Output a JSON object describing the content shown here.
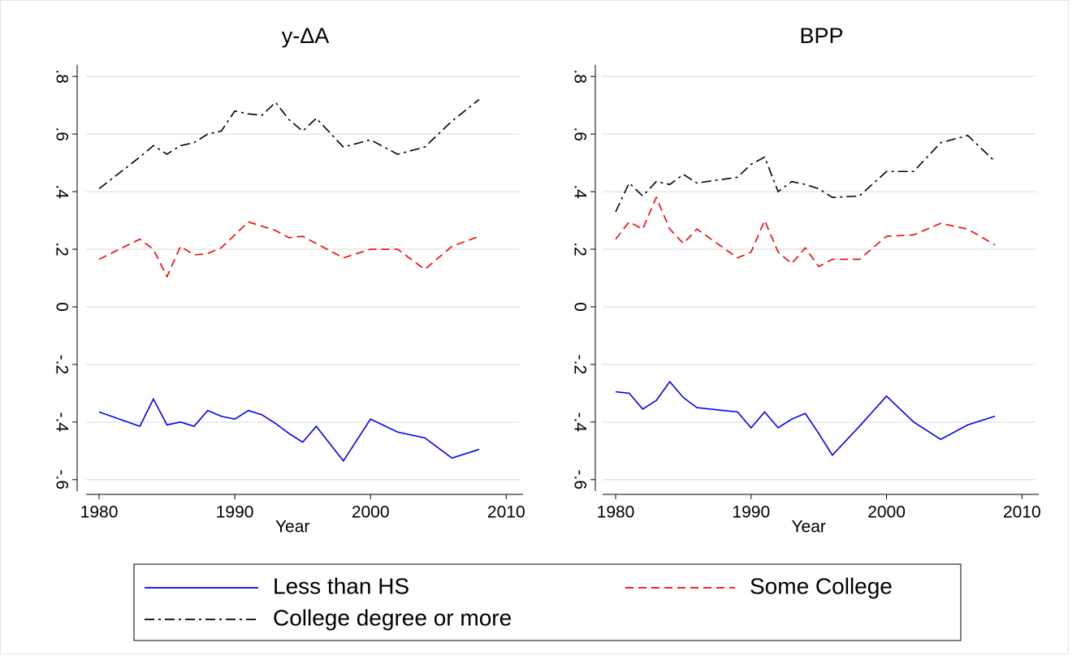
{
  "chart_data": [
    {
      "type": "line",
      "title": "y-ΔA",
      "x_label": "Year",
      "x": [
        1980,
        1983,
        1984,
        1985,
        1986,
        1987,
        1988,
        1989,
        1990,
        1991,
        1992,
        1993,
        1994,
        1995,
        1996,
        1998,
        2000,
        2002,
        2004,
        2006,
        2008
      ],
      "series": [
        {
          "name": "Less than HS",
          "color": "#0000ff",
          "dash": "none",
          "values": [
            -0.365,
            -0.415,
            -0.32,
            -0.41,
            -0.4,
            -0.415,
            -0.36,
            -0.38,
            -0.39,
            -0.36,
            -0.375,
            -0.405,
            -0.44,
            -0.47,
            -0.415,
            -0.535,
            -0.39,
            -0.435,
            -0.455,
            -0.525,
            -0.495
          ]
        },
        {
          "name": "Some College",
          "color": "#ff0000",
          "dash": "10,6",
          "values": [
            0.165,
            0.235,
            0.2,
            0.105,
            0.21,
            0.18,
            0.185,
            0.205,
            0.25,
            0.295,
            0.28,
            0.265,
            0.24,
            0.245,
            0.22,
            0.17,
            0.2,
            0.2,
            0.13,
            0.21,
            0.245
          ]
        },
        {
          "name": "College degree or more",
          "color": "#000000",
          "dash": "12,5,3,5",
          "values": [
            0.41,
            0.52,
            0.56,
            0.53,
            0.56,
            0.57,
            0.6,
            0.61,
            0.68,
            0.67,
            0.665,
            0.71,
            0.65,
            0.61,
            0.655,
            0.555,
            0.58,
            0.53,
            0.555,
            0.645,
            0.72
          ]
        }
      ],
      "xlim": [
        1979.4,
        2011
      ],
      "xticks": [
        1980,
        1990,
        2000,
        2010
      ],
      "ylim": [
        -0.64,
        0.84
      ],
      "yticks": [
        {
          "value": -0.6,
          "label": "-.6"
        },
        {
          "value": -0.4,
          "label": "-.4"
        },
        {
          "value": -0.2,
          "label": "-.2"
        },
        0,
        {
          "value": 0.2,
          "label": ".2"
        },
        {
          "value": 0.4,
          "label": ".4"
        },
        {
          "value": 0.6,
          "label": ".6"
        },
        {
          "value": 0.8,
          "label": ".8"
        }
      ],
      "grid": true
    },
    {
      "type": "line",
      "title": "BPP",
      "x_label": "Year",
      "x": [
        1980,
        1981,
        1982,
        1983,
        1984,
        1985,
        1986,
        1989,
        1990,
        1991,
        1992,
        1993,
        1994,
        1995,
        1996,
        1998,
        2000,
        2002,
        2004,
        2006,
        2008
      ],
      "series": [
        {
          "color": "#0000ff",
          "dash": "none",
          "values": [
            -0.295,
            -0.3,
            -0.355,
            -0.325,
            -0.26,
            -0.315,
            -0.35,
            -0.365,
            -0.42,
            -0.365,
            -0.42,
            -0.39,
            -0.37,
            -0.44,
            -0.515,
            -0.415,
            -0.31,
            -0.4,
            -0.46,
            -0.41,
            -0.38
          ]
        },
        {
          "color": "#ff0000",
          "dash": "10,6",
          "values": [
            0.235,
            0.295,
            0.27,
            0.38,
            0.27,
            0.22,
            0.27,
            0.17,
            0.19,
            0.3,
            0.19,
            0.15,
            0.205,
            0.14,
            0.165,
            0.165,
            0.245,
            0.25,
            0.29,
            0.27,
            0.215
          ]
        },
        {
          "color": "#000000",
          "dash": "12,5,3,5",
          "values": [
            0.33,
            0.43,
            0.385,
            0.435,
            0.425,
            0.46,
            0.43,
            0.45,
            0.495,
            0.52,
            0.4,
            0.435,
            0.425,
            0.41,
            0.38,
            0.385,
            0.47,
            0.47,
            0.57,
            0.595,
            0.505
          ]
        }
      ],
      "xlim": [
        1979.4,
        2011
      ],
      "xticks": [
        1980,
        1990,
        2000,
        2010
      ],
      "ylim": [
        -0.64,
        0.84
      ],
      "yticks": [
        {
          "value": -0.6,
          "label": "-.6"
        },
        {
          "value": -0.4,
          "label": "-.4"
        },
        {
          "value": -0.2,
          "label": "-.2"
        },
        0,
        {
          "value": 0.2,
          "label": ".2"
        },
        {
          "value": 0.4,
          "label": ".4"
        },
        {
          "value": 0.6,
          "label": ".6"
        },
        {
          "value": 0.8,
          "label": ".8"
        }
      ],
      "grid": true
    }
  ]
}
